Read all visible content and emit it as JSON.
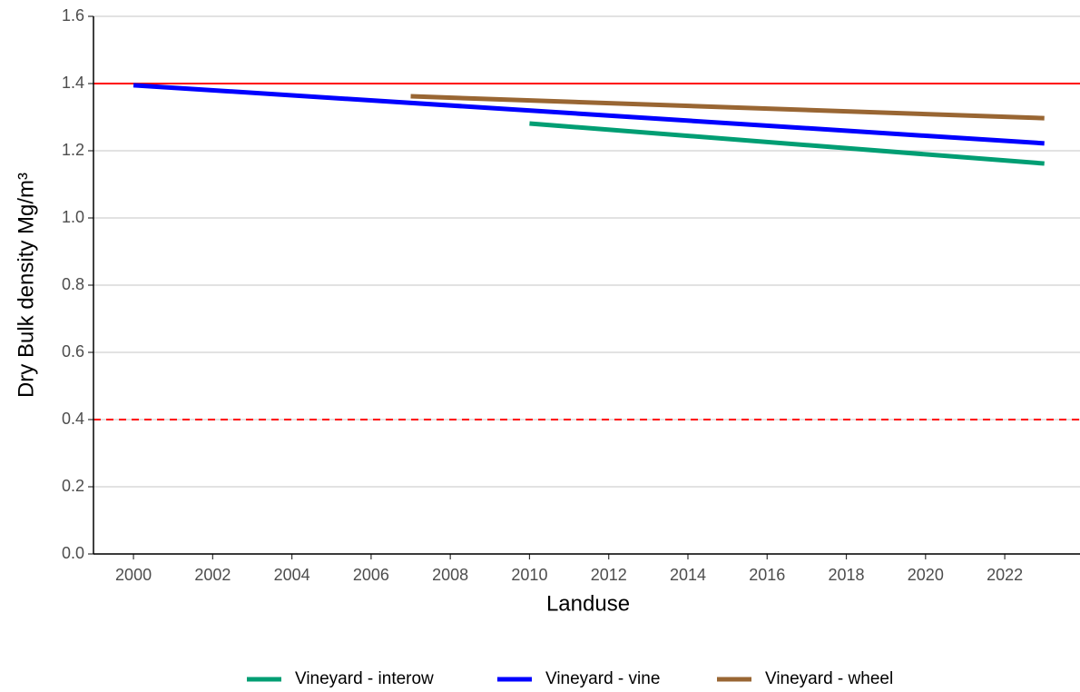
{
  "chart_data": {
    "type": "line",
    "x_label": "Landuse",
    "y_label": "Dry Bulk density Mg/m³",
    "xlim": [
      1998.99,
      2023.9
    ],
    "ylim": [
      0,
      1.6
    ],
    "xticks": [
      2000,
      2002,
      2004,
      2006,
      2008,
      2010,
      2012,
      2014,
      2016,
      2018,
      2020,
      2022
    ],
    "yticks": [
      {
        "value": 0,
        "label": "0.0"
      },
      0.2,
      0.4,
      0.6,
      0.8,
      {
        "value": 1,
        "label": "1.0"
      },
      1.2,
      1.4,
      1.6
    ],
    "grid": true,
    "legend_position": "bottom",
    "reference_lines": [
      {
        "value": 1.4,
        "color": "#ff0000",
        "style": "solid"
      },
      {
        "value": 0.4,
        "color": "#ff0000",
        "style": "dashed"
      }
    ],
    "series": [
      {
        "name": "Vineyard - interow",
        "color": "#009e73",
        "x": [
          2010,
          2023
        ],
        "values": [
          1.281,
          1.162
        ]
      },
      {
        "name": "Vineyard - vine",
        "color": "#0000ff",
        "x": [
          2000,
          2023
        ],
        "values": [
          1.395,
          1.222
        ]
      },
      {
        "name": "Vineyard - wheel",
        "color": "#996633",
        "x": [
          2007,
          2023
        ],
        "values": [
          1.362,
          1.297
        ]
      }
    ]
  }
}
